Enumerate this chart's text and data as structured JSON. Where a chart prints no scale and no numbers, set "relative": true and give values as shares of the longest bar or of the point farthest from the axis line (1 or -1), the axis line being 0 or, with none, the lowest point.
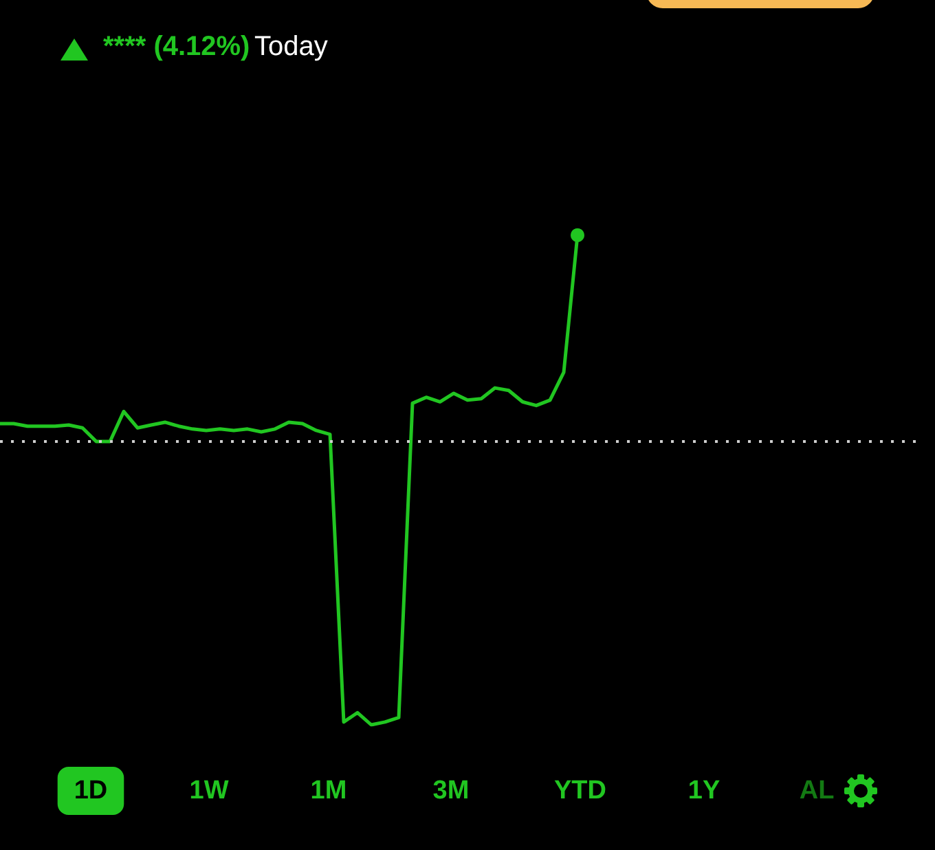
{
  "chart_data": {
    "type": "line",
    "relative": true,
    "title": "**** (4.12%)",
    "subtitle": "Today",
    "categories": [
      null,
      null,
      null,
      null,
      null,
      null,
      null,
      null,
      null,
      null,
      null,
      null,
      null,
      null,
      null,
      null,
      null,
      null,
      null,
      null,
      null,
      null,
      null,
      null,
      null,
      null,
      null,
      null,
      null,
      null,
      null,
      null,
      null,
      null,
      null,
      null,
      null,
      null,
      null,
      null,
      null,
      null,
      null,
      null,
      null,
      null,
      null,
      null,
      null,
      null,
      null,
      null,
      null,
      null,
      null,
      null,
      null,
      null,
      null,
      null,
      null,
      null,
      null,
      null,
      null,
      null,
      null,
      null
    ],
    "series": [
      {
        "color": "#21c621",
        "values": [
          0.063,
          0.063,
          0.054,
          0.054,
          0.054,
          0.058,
          0.048,
          0,
          0,
          0.106,
          0.048,
          0.058,
          0.068,
          0.054,
          0.044,
          0.039,
          0.044,
          0.039,
          0.044,
          0.034,
          0.044,
          0.068,
          0.063,
          0.039,
          0.025,
          -0.99,
          -0.957,
          -1,
          -0.99,
          -0.974,
          0.135,
          0.156,
          0.14,
          0.17,
          0.146,
          0.151,
          0.189,
          0.18,
          0.14,
          0.127,
          0.146,
          0.244,
          0.728,
          null,
          null,
          null,
          null,
          null,
          null,
          null,
          null,
          null,
          null,
          null,
          null,
          null,
          null,
          null,
          null,
          null,
          null,
          null,
          null,
          null,
          null,
          null,
          null,
          null
        ]
      }
    ],
    "ref_lines": [
      {
        "axis": "y",
        "value": 0,
        "color": "#cfcfcf",
        "line_style": "dotted"
      }
    ],
    "annotations": [
      "1D",
      "1W",
      "1M",
      "3M",
      "YTD",
      "1Y",
      "AL"
    ],
    "grid": false
  }
}
